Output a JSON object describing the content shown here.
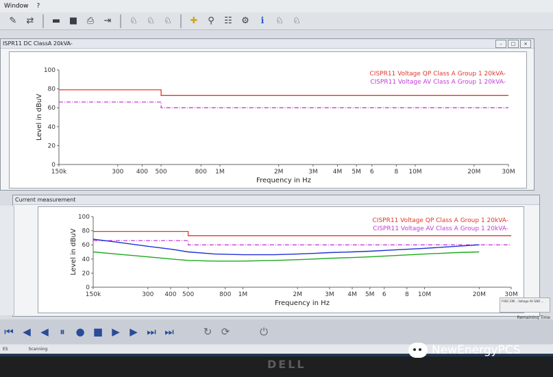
{
  "menu": {
    "items": [
      "Window",
      "?"
    ]
  },
  "toolbar": {
    "icons": [
      "report-icon",
      "export-icon",
      "folder-icon",
      "stop-square-icon",
      "print-icon",
      "exit-icon",
      "probe-icon",
      "probe-icon",
      "probe-icon",
      "cursor-cross-icon",
      "marker-icon",
      "list-icon",
      "settings-icon",
      "info-icon",
      "probe-icon",
      "probe-icon"
    ]
  },
  "top_window": {
    "title": "ISPR11 DC ClassA 20kVA-",
    "chart": {
      "ylabel": "Level in dBuV",
      "xlabel": "Frequency in Hz",
      "yticks": [
        "100",
        "80",
        "60",
        "40",
        "20",
        "0"
      ],
      "xticks": [
        "150k",
        "300",
        "400",
        "500",
        "800",
        "1M",
        "2M",
        "3M",
        "4M",
        "5M",
        "6",
        "8",
        "10M",
        "20M",
        "30M"
      ],
      "legend": [
        "CISPR11 Voltage QP Class A Group 1 20kVA-",
        "CISPR11 Voltage AV Class A Group 1 20kVA-"
      ]
    }
  },
  "bottom_window": {
    "title": "Current measurement",
    "chart": {
      "ylabel": "Level in dBuV",
      "xlabel": "Frequency in Hz",
      "yticks": [
        "100",
        "80",
        "60",
        "40",
        "20",
        "0"
      ],
      "xticks": [
        "150k",
        "300",
        "400",
        "500",
        "800",
        "1M",
        "2M",
        "3M",
        "4M",
        "5M",
        "6",
        "8",
        "10M",
        "20M",
        "30M"
      ],
      "legend": [
        "CISPR11 Voltage QP Class A Group 1 20kVA-",
        "CISPR11 Voltage AV Class A Group 1 20kVA-"
      ]
    },
    "info_box": "FVDC EMI ...Voltage AV GND ...",
    "remaining": "Remaining Time"
  },
  "status": {
    "left": "ES",
    "scanning": "Scanning"
  },
  "watermark": "NewEnergyPCS",
  "colors": {
    "qp_limit": "#e0352b",
    "av_limit": "#c23bd6",
    "qp_trace": "#1f2fd8",
    "av_trace": "#1aa81e"
  },
  "chart_data": [
    {
      "type": "line",
      "title": "",
      "xlabel": "Frequency in Hz",
      "ylabel": "Level in dBuV",
      "xscale": "log",
      "xlim": [
        150000,
        30000000
      ],
      "ylim": [
        0,
        100
      ],
      "series": [
        {
          "name": "CISPR11 Voltage QP Class A Group 1 20kVA-",
          "x": [
            150000,
            500000,
            500000,
            30000000
          ],
          "y": [
            79,
            79,
            73,
            73
          ]
        },
        {
          "name": "CISPR11 Voltage AV Class A Group 1 20kVA-",
          "x": [
            150000,
            500000,
            500000,
            30000000
          ],
          "y": [
            66,
            66,
            60,
            60
          ]
        }
      ]
    },
    {
      "type": "line",
      "title": "",
      "xlabel": "Frequency in Hz",
      "ylabel": "Level in dBuV",
      "xscale": "log",
      "xlim": [
        150000,
        30000000
      ],
      "ylim": [
        0,
        100
      ],
      "series": [
        {
          "name": "CISPR11 Voltage QP Class A Group 1 20kVA-",
          "x": [
            150000,
            500000,
            500000,
            30000000
          ],
          "y": [
            79,
            79,
            73,
            73
          ]
        },
        {
          "name": "CISPR11 Voltage AV Class A Group 1 20kVA-",
          "x": [
            150000,
            500000,
            500000,
            30000000
          ],
          "y": [
            66,
            66,
            60,
            60
          ]
        },
        {
          "x": [
            150000,
            200000,
            300000,
            400000,
            500000,
            700000,
            1000000,
            1500000,
            2000000,
            2500000,
            3000000,
            4000000,
            5000000,
            7000000,
            10000000,
            15000000,
            20000000
          ],
          "y": [
            68,
            64,
            58,
            54,
            50,
            47,
            46,
            46,
            47,
            48,
            49,
            50,
            51,
            53,
            55,
            58,
            60
          ]
        },
        {
          "x": [
            150000,
            200000,
            300000,
            400000,
            500000,
            700000,
            1000000,
            1500000,
            2000000,
            2500000,
            3000000,
            4000000,
            5000000,
            7000000,
            10000000,
            15000000,
            20000000
          ],
          "y": [
            50,
            47,
            43,
            40,
            38,
            37,
            37,
            38,
            39,
            40,
            41,
            42,
            43,
            45,
            47,
            49,
            50
          ]
        }
      ]
    }
  ]
}
